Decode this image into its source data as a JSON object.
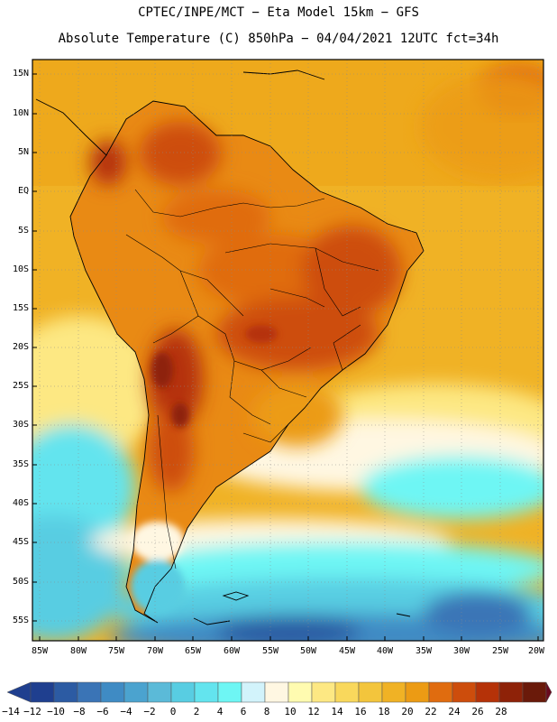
{
  "header": {
    "line1": "CPTEC/INPE/MCT −  Eta Model 15km − GFS",
    "line2": "Absolute Temperature (C) 850hPa − 04/04/2021 12UTC fct=34h"
  },
  "axes": {
    "lat_labels": [
      "15N",
      "10N",
      "5N",
      "EQ",
      "5S",
      "10S",
      "15S",
      "20S",
      "25S",
      "30S",
      "35S",
      "40S",
      "45S",
      "50S",
      "55S"
    ],
    "lon_labels": [
      "85W",
      "80W",
      "75W",
      "70W",
      "65W",
      "60W",
      "55W",
      "50W",
      "45W",
      "40W",
      "35W",
      "30W",
      "25W",
      "20W"
    ]
  },
  "colorbar": {
    "ticks": [
      "−14",
      "−12",
      "−10",
      "−8",
      "−6",
      "−4",
      "−2",
      "0",
      "2",
      "4",
      "6",
      "8",
      "10",
      "12",
      "14",
      "16",
      "18",
      "20",
      "22",
      "24",
      "26",
      "28"
    ],
    "colors": [
      "#1f3f8f",
      "#2c5ba3",
      "#3a74b6",
      "#3f8bc4",
      "#4ba3cf",
      "#5bbad8",
      "#58cde2",
      "#63e4ee",
      "#6ef6f4",
      "#d2f3fb",
      "#fff7e2",
      "#fffbb0",
      "#fde883",
      "#f9d85c",
      "#f3c53c",
      "#f0b225",
      "#ec9b14",
      "#e06c0f",
      "#cd4d0c",
      "#b53208",
      "#8e2208",
      "#6a1a0a"
    ],
    "under_color": "#1f3f8f",
    "over_color": "#6a0a1f"
  },
  "colors": {
    "land_hot": "#c9500f",
    "land_very_hot": "#a83508",
    "ocean_warm": "#efab20",
    "ocean_cool": "#fde48a",
    "cold_water": "#6ed5ee",
    "cold_deep": "#3e86c4"
  }
}
